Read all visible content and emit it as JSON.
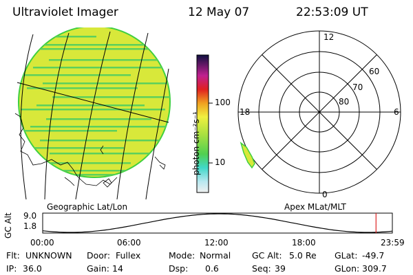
{
  "header": {
    "title": "Ultraviolet Imager",
    "date": "12 May 07",
    "time": "22:53:09 UT"
  },
  "colorbar": {
    "unit": "photon cm⁻²s⁻¹",
    "tick_labels": [
      "100",
      "10"
    ]
  },
  "panels": {
    "left_label": "Geographic Lat/Lon",
    "right_label": "Apex MLat/MLT"
  },
  "polar_plot": {
    "mlt_labels": [
      "12",
      "18",
      "6",
      "0"
    ],
    "mlat_labels": [
      "60",
      "70",
      "80"
    ]
  },
  "altitude_plot": {
    "ylabel": "GC Alt",
    "y_ticks": [
      "9.0",
      "1.8"
    ],
    "x_ticks": [
      "00:00",
      "06:00",
      "12:00",
      "18:00",
      "23:59"
    ],
    "current_time_fraction": 0.9533
  },
  "info": {
    "row1": [
      {
        "key": "Flt:",
        "value": "UNKNOWN"
      },
      {
        "key": "Door:",
        "value": "Fullex"
      },
      {
        "key": "Mode:",
        "value": "Normal"
      },
      {
        "key": "GC Alt:",
        "value": "5.0 Re"
      },
      {
        "key": "GLat:",
        "value": "-49.7"
      }
    ],
    "row2": [
      {
        "key": "IP:",
        "value": "36.0"
      },
      {
        "key": "Gain:",
        "value": "14"
      },
      {
        "key": "Dsp:",
        "value": "0.6"
      },
      {
        "key": "Seq:",
        "value": "39"
      },
      {
        "key": "GLon:",
        "value": "309.7"
      }
    ]
  },
  "colors": {
    "disk_fill": "#d8e83a",
    "disk_edge": "#3fcf3f",
    "stripe": "#5cd05c",
    "time_marker": "#dd2222"
  }
}
